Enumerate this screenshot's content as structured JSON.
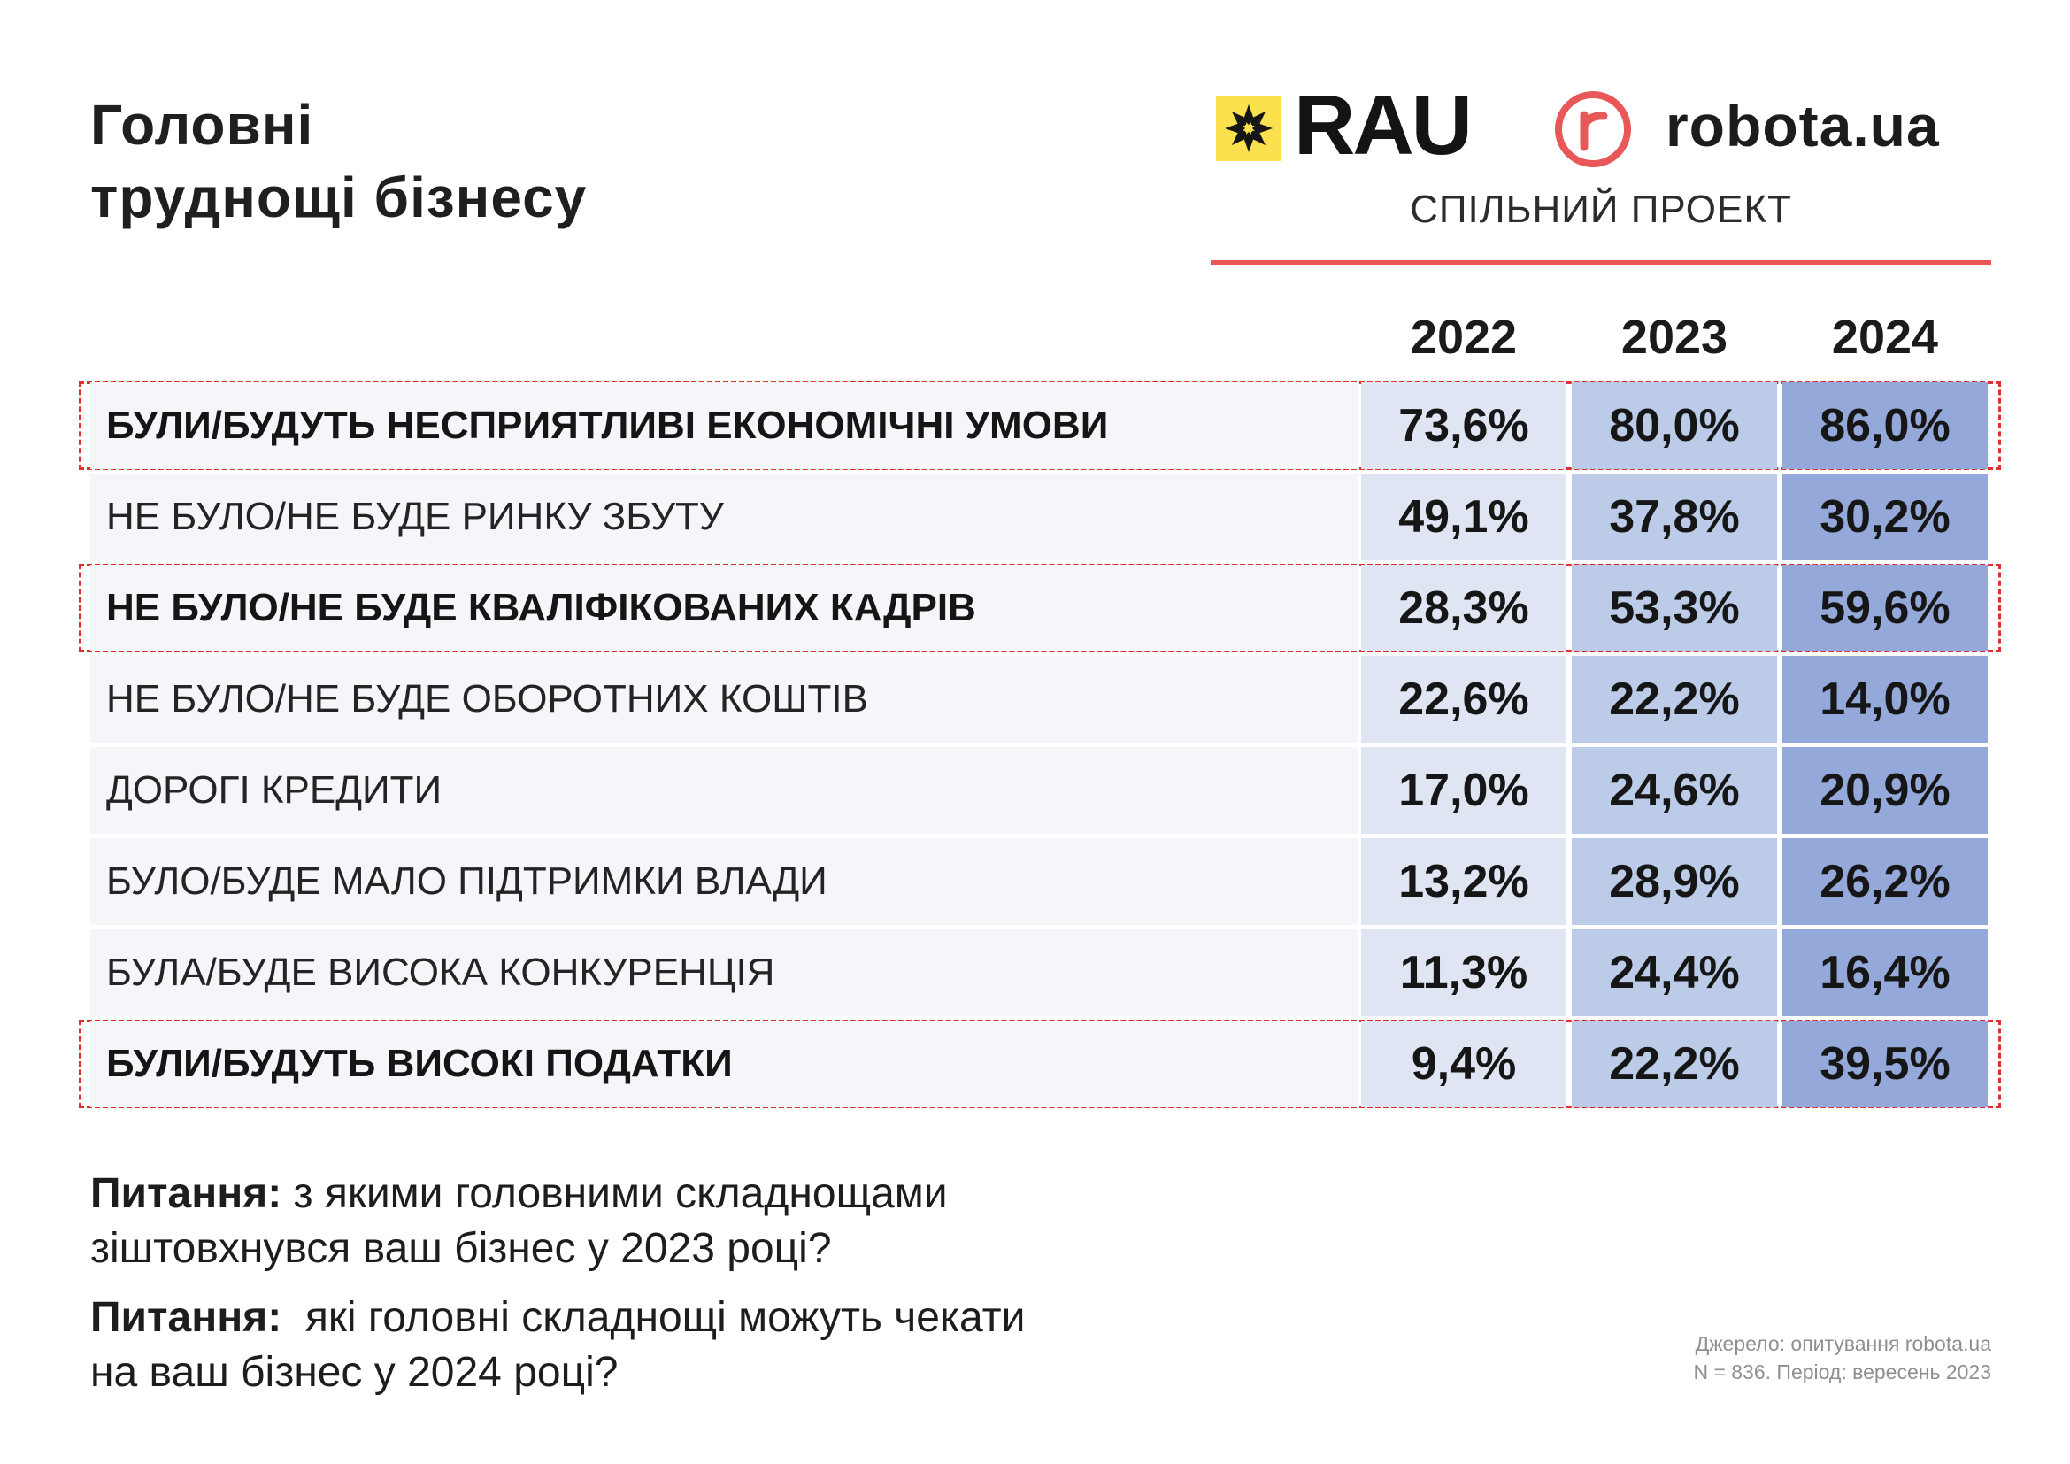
{
  "title": {
    "line1": "Головні",
    "line2": "труднощі бізнесу"
  },
  "logos": {
    "rau": "RAU",
    "robota": "robota.ua",
    "joint_project": "СПІЛЬНИЙ ПРОЕКТ"
  },
  "colors": {
    "accent_red": "#e85858",
    "col_2022": "#dfe5f3",
    "col_2023": "#bccbe8",
    "col_2024": "#94a9da",
    "highlight": "#e03131"
  },
  "chart_data": {
    "type": "table",
    "title": "Головні труднощі бізнесу",
    "columns": [
      "2022",
      "2023",
      "2024"
    ],
    "rows": [
      {
        "label": "БУЛИ/БУДУТЬ НЕСПРИЯТЛИВІ ЕКОНОМІЧНІ УМОВИ",
        "values": [
          "73,6%",
          "80,0%",
          "86,0%"
        ],
        "highlighted": true
      },
      {
        "label": "НЕ БУЛО/НЕ БУДЕ РИНКУ ЗБУТУ",
        "values": [
          "49,1%",
          "37,8%",
          "30,2%"
        ],
        "highlighted": false
      },
      {
        "label": "НЕ БУЛО/НЕ БУДЕ КВАЛІФІКОВАНИХ КАДРІВ",
        "values": [
          "28,3%",
          "53,3%",
          "59,6%"
        ],
        "highlighted": true
      },
      {
        "label": "НЕ БУЛО/НЕ БУДЕ ОБОРОТНИХ КОШТІВ",
        "values": [
          "22,6%",
          "22,2%",
          "14,0%"
        ],
        "highlighted": false
      },
      {
        "label": "ДОРОГІ КРЕДИТИ",
        "values": [
          "17,0%",
          "24,6%",
          "20,9%"
        ],
        "highlighted": false
      },
      {
        "label": "БУЛО/БУДЕ МАЛО ПІДТРИМКИ ВЛАДИ",
        "values": [
          "13,2%",
          "28,9%",
          "26,2%"
        ],
        "highlighted": false
      },
      {
        "label": "БУЛА/БУДЕ ВИСОКА КОНКУРЕНЦІЯ",
        "values": [
          "11,3%",
          "24,4%",
          "16,4%"
        ],
        "highlighted": false
      },
      {
        "label": "БУЛИ/БУДУТЬ ВИСОКІ ПОДАТКИ",
        "values": [
          "9,4%",
          "22,2%",
          "39,5%"
        ],
        "highlighted": true
      }
    ]
  },
  "questions": [
    {
      "prefix": "Питання:",
      "line1": " з якими головними складнощами",
      "line2": "зіштовхнувся ваш бізнес у 2023 році?"
    },
    {
      "prefix": "Питання:",
      "line1": "  які головні складнощі можуть чекати",
      "line2": "на ваш бізнес у 2024 році?"
    }
  ],
  "source": {
    "line1": "Джерело: опитування robota.ua",
    "line2": "N = 836. Період: вересень 2023"
  }
}
